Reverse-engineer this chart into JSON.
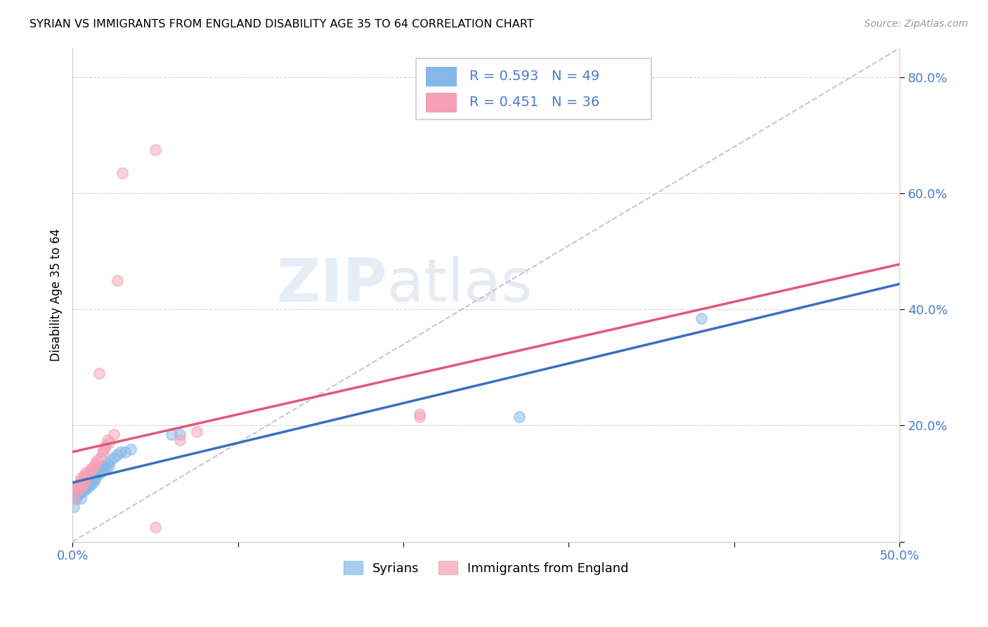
{
  "title": "SYRIAN VS IMMIGRANTS FROM ENGLAND DISABILITY AGE 35 TO 64 CORRELATION CHART",
  "source": "Source: ZipAtlas.com",
  "ylabel": "Disability Age 35 to 64",
  "xlim": [
    0.0,
    0.5
  ],
  "ylim": [
    0.0,
    0.85
  ],
  "x_ticks": [
    0.0,
    0.1,
    0.2,
    0.3,
    0.4,
    0.5
  ],
  "x_tick_labels": [
    "0.0%",
    "",
    "",
    "",
    "",
    "50.0%"
  ],
  "y_ticks": [
    0.0,
    0.2,
    0.4,
    0.6,
    0.8
  ],
  "y_tick_labels": [
    "",
    "20.0%",
    "40.0%",
    "60.0%",
    "80.0%"
  ],
  "legend_label_1": "Syrians",
  "legend_label_2": "Immigrants from England",
  "r1": 0.593,
  "n1": 49,
  "r2": 0.451,
  "n2": 36,
  "color_blue": "#85b8e8",
  "color_pink": "#f4a0b5",
  "line_color_blue": "#3a6fbf",
  "line_color_pink": "#e05878",
  "line_color_dashed": "#ccbbcc",
  "background_color": "#ffffff",
  "watermark_zip": "ZIP",
  "watermark_atlas": "atlas",
  "syrians_x": [
    0.001,
    0.002,
    0.003,
    0.003,
    0.004,
    0.004,
    0.005,
    0.005,
    0.005,
    0.006,
    0.006,
    0.007,
    0.007,
    0.007,
    0.008,
    0.008,
    0.008,
    0.009,
    0.009,
    0.01,
    0.01,
    0.01,
    0.011,
    0.011,
    0.012,
    0.012,
    0.013,
    0.013,
    0.014,
    0.014,
    0.015,
    0.016,
    0.016,
    0.017,
    0.018,
    0.019,
    0.02,
    0.021,
    0.022,
    0.023,
    0.025,
    0.027,
    0.029,
    0.032,
    0.035,
    0.06,
    0.065,
    0.27,
    0.38
  ],
  "syrians_y": [
    0.06,
    0.075,
    0.08,
    0.095,
    0.085,
    0.09,
    0.075,
    0.095,
    0.1,
    0.085,
    0.1,
    0.09,
    0.095,
    0.1,
    0.09,
    0.095,
    0.105,
    0.1,
    0.11,
    0.095,
    0.1,
    0.11,
    0.105,
    0.115,
    0.1,
    0.11,
    0.105,
    0.115,
    0.11,
    0.12,
    0.115,
    0.12,
    0.125,
    0.12,
    0.125,
    0.13,
    0.125,
    0.135,
    0.13,
    0.14,
    0.145,
    0.15,
    0.155,
    0.155,
    0.16,
    0.185,
    0.185,
    0.215,
    0.385
  ],
  "england_x": [
    0.001,
    0.002,
    0.003,
    0.004,
    0.004,
    0.005,
    0.005,
    0.006,
    0.006,
    0.007,
    0.007,
    0.008,
    0.008,
    0.009,
    0.01,
    0.011,
    0.012,
    0.013,
    0.014,
    0.015,
    0.016,
    0.017,
    0.018,
    0.019,
    0.02,
    0.021,
    0.022,
    0.025,
    0.027,
    0.03,
    0.05,
    0.065,
    0.075,
    0.05,
    0.21,
    0.21
  ],
  "england_y": [
    0.075,
    0.09,
    0.095,
    0.09,
    0.1,
    0.105,
    0.11,
    0.095,
    0.1,
    0.105,
    0.115,
    0.11,
    0.12,
    0.115,
    0.12,
    0.125,
    0.125,
    0.13,
    0.135,
    0.14,
    0.29,
    0.145,
    0.155,
    0.16,
    0.165,
    0.175,
    0.17,
    0.185,
    0.45,
    0.635,
    0.675,
    0.175,
    0.19,
    0.025,
    0.22,
    0.215
  ]
}
